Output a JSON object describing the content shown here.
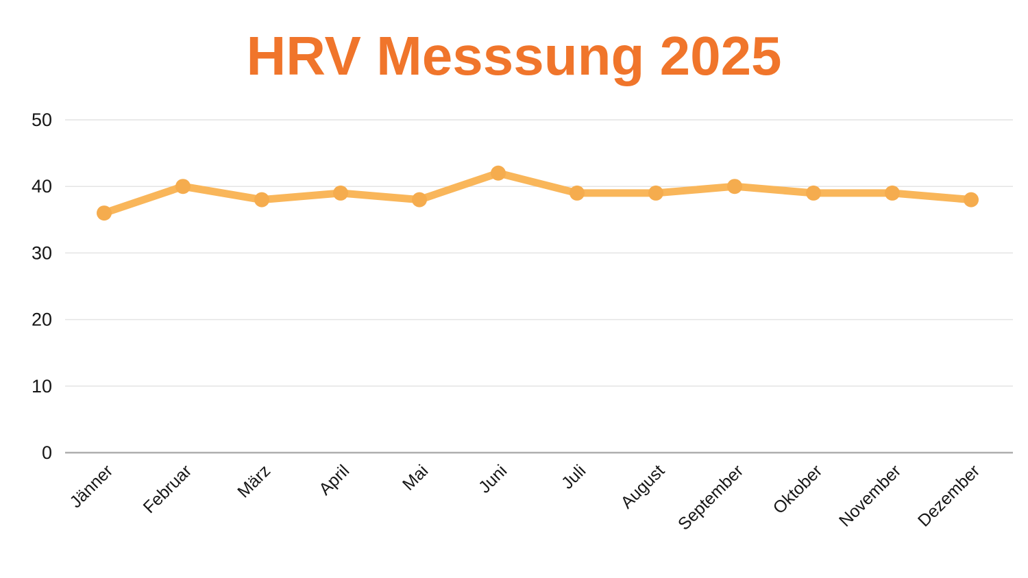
{
  "title": {
    "text": "HRV Messsung 2025",
    "color": "#F0752B"
  },
  "chart_data": {
    "type": "line",
    "title": "HRV Messsung 2025",
    "categories": [
      "Jänner",
      "Februar",
      "März",
      "April",
      "Mai",
      "Juni",
      "Juli",
      "August",
      "September",
      "Oktober",
      "November",
      "Dezember"
    ],
    "series": [
      {
        "name": "HRV",
        "values": [
          36,
          40,
          38,
          39,
          38,
          42,
          39,
          39,
          40,
          39,
          39,
          38
        ]
      }
    ],
    "xlabel": "",
    "ylabel": "",
    "ylim": [
      0,
      50
    ],
    "yticks": [
      0,
      10,
      20,
      30,
      40,
      50
    ],
    "grid": "horizontal",
    "legend_position": "none",
    "x_label_rotation_deg": 45,
    "colors": {
      "line": "#F9B65A",
      "marker": "#F5AC4E",
      "gridline": "#E4E4E4",
      "baseline": "#AEAEAE",
      "tick_label": "#161616",
      "title": "#F0752B",
      "background": "#FFFFFF"
    }
  }
}
